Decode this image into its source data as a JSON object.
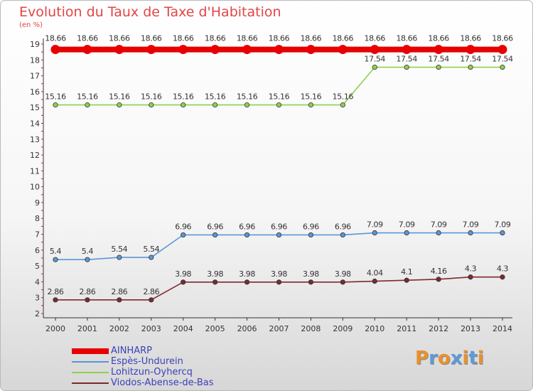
{
  "title": "Evolution du Taux de Taxe d'Habitation",
  "subtitle": "(en %)",
  "brand": {
    "letters": [
      "P",
      "r",
      "o",
      "x",
      "i",
      "t",
      "i"
    ],
    "colors": [
      "#e8912d",
      "#5f9ad6",
      "#e8912d",
      "#5f9ad6",
      "#e8912d",
      "#5f9ad6",
      "#e8912d"
    ]
  },
  "colors": {
    "title": "#e24545",
    "axis": "#333333",
    "tick_marks": "#d11f1f",
    "legend_text": "#3d41b8"
  },
  "chart_data": {
    "type": "line",
    "title": "Evolution du Taux de Taxe d'Habitation",
    "subtitle": "(en %)",
    "x": [
      "2000",
      "2001",
      "2002",
      "2003",
      "2004",
      "2005",
      "2006",
      "2007",
      "2008",
      "2009",
      "2010",
      "2011",
      "2012",
      "2013",
      "2014"
    ],
    "ylim": [
      2,
      19
    ],
    "yticks": [
      2,
      3,
      4,
      5,
      6,
      7,
      8,
      9,
      10,
      11,
      12,
      13,
      14,
      15,
      16,
      17,
      18,
      19
    ],
    "grid": false,
    "legend_position": "bottom-left",
    "series": [
      {
        "name": "AINHARP",
        "color": "#e60000",
        "values": [
          18.66,
          18.66,
          18.66,
          18.66,
          18.66,
          18.66,
          18.66,
          18.66,
          18.66,
          18.66,
          18.66,
          18.66,
          18.66,
          18.66,
          18.66
        ],
        "labels": [
          "18.66",
          "18.66",
          "18.66",
          "18.66",
          "18.66",
          "18.66",
          "18.66",
          "18.66",
          "18.66",
          "18.66",
          "18.66",
          "18.66",
          "18.66",
          "18.66",
          "18.66"
        ]
      },
      {
        "name": "Espès-Undurein",
        "color": "#5b97d4",
        "values": [
          5.4,
          5.4,
          5.54,
          5.54,
          6.96,
          6.96,
          6.96,
          6.96,
          6.96,
          6.96,
          7.09,
          7.09,
          7.09,
          7.09,
          7.09
        ],
        "labels": [
          "5.4",
          "5.4",
          "5.54",
          "5.54",
          "6.96",
          "6.96",
          "6.96",
          "6.96",
          "6.96",
          "6.96",
          "7.09",
          "7.09",
          "7.09",
          "7.09",
          "7.09"
        ]
      },
      {
        "name": "Lohitzun-Oyhercq",
        "color": "#8fd14f",
        "values": [
          15.16,
          15.16,
          15.16,
          15.16,
          15.16,
          15.16,
          15.16,
          15.16,
          15.16,
          15.16,
          17.54,
          17.54,
          17.54,
          17.54,
          17.54
        ],
        "labels": [
          "15.16",
          "15.16",
          "15.16",
          "15.16",
          "15.16",
          "15.16",
          "15.16",
          "15.16",
          "15.16",
          "15.16",
          "17.54",
          "17.54",
          "17.54",
          "17.54",
          "17.54"
        ]
      },
      {
        "name": "Viodos-Abense-de-Bas",
        "color": "#7b2a2f",
        "values": [
          2.86,
          2.86,
          2.86,
          2.86,
          3.98,
          3.98,
          3.98,
          3.98,
          3.98,
          3.98,
          4.04,
          4.1,
          4.16,
          4.3,
          4.3
        ],
        "labels": [
          "2.86",
          "2.86",
          "2.86",
          "2.86",
          "3.98",
          "3.98",
          "3.98",
          "3.98",
          "3.98",
          "3.98",
          "4.04",
          "4.1",
          "4.16",
          "4.3",
          "4.3"
        ]
      }
    ]
  }
}
